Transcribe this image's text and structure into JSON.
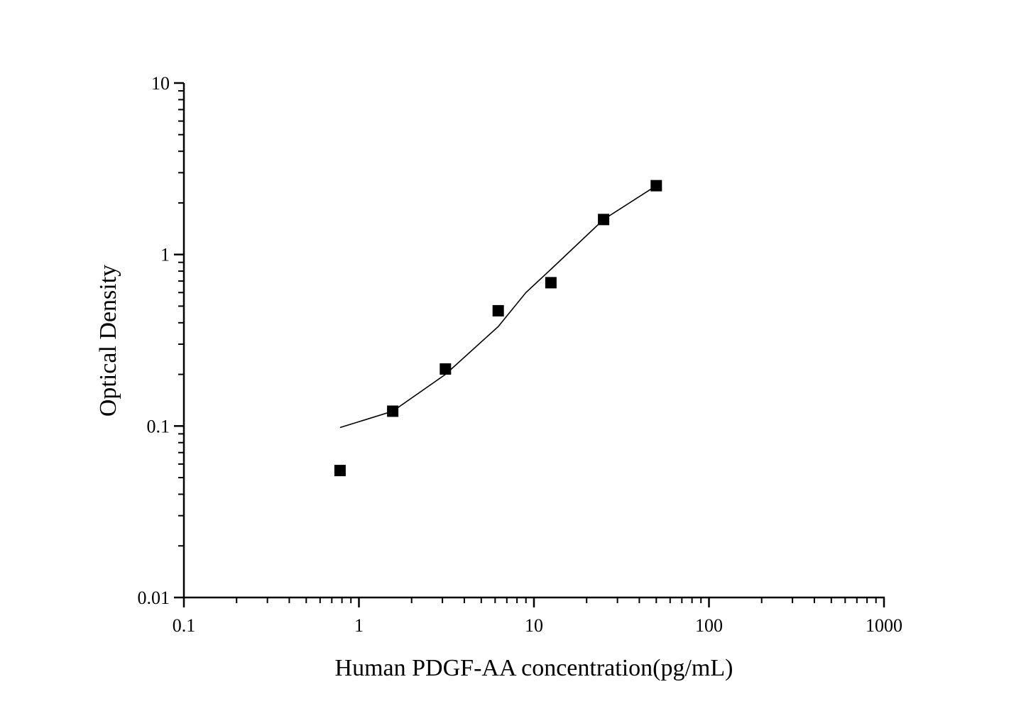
{
  "chart_data": {
    "type": "scatter",
    "title": "",
    "xlabel": "Human PDGF-AA concentration(pg/mL)",
    "ylabel": "Optical Density",
    "x_scale": "log",
    "y_scale": "log",
    "xlim": [
      0.1,
      1000
    ],
    "ylim": [
      0.01,
      10
    ],
    "x_ticks": [
      "0.1",
      "1",
      "10",
      "100",
      "1000"
    ],
    "y_ticks": [
      "0.01",
      "0.1",
      "1",
      "10"
    ],
    "grid": false,
    "legend": "none",
    "marker_color": "#000000",
    "points": {
      "x": [
        0.78,
        1.56,
        3.12,
        6.25,
        12.5,
        25,
        50
      ],
      "y": [
        0.055,
        0.122,
        0.215,
        0.47,
        0.685,
        1.6,
        2.52
      ]
    },
    "fit_curve": {
      "x": [
        0.78,
        1.56,
        3.12,
        6.25,
        9.0,
        12.5,
        25,
        50
      ],
      "y": [
        0.098,
        0.122,
        0.2,
        0.38,
        0.6,
        0.82,
        1.6,
        2.52
      ]
    }
  }
}
